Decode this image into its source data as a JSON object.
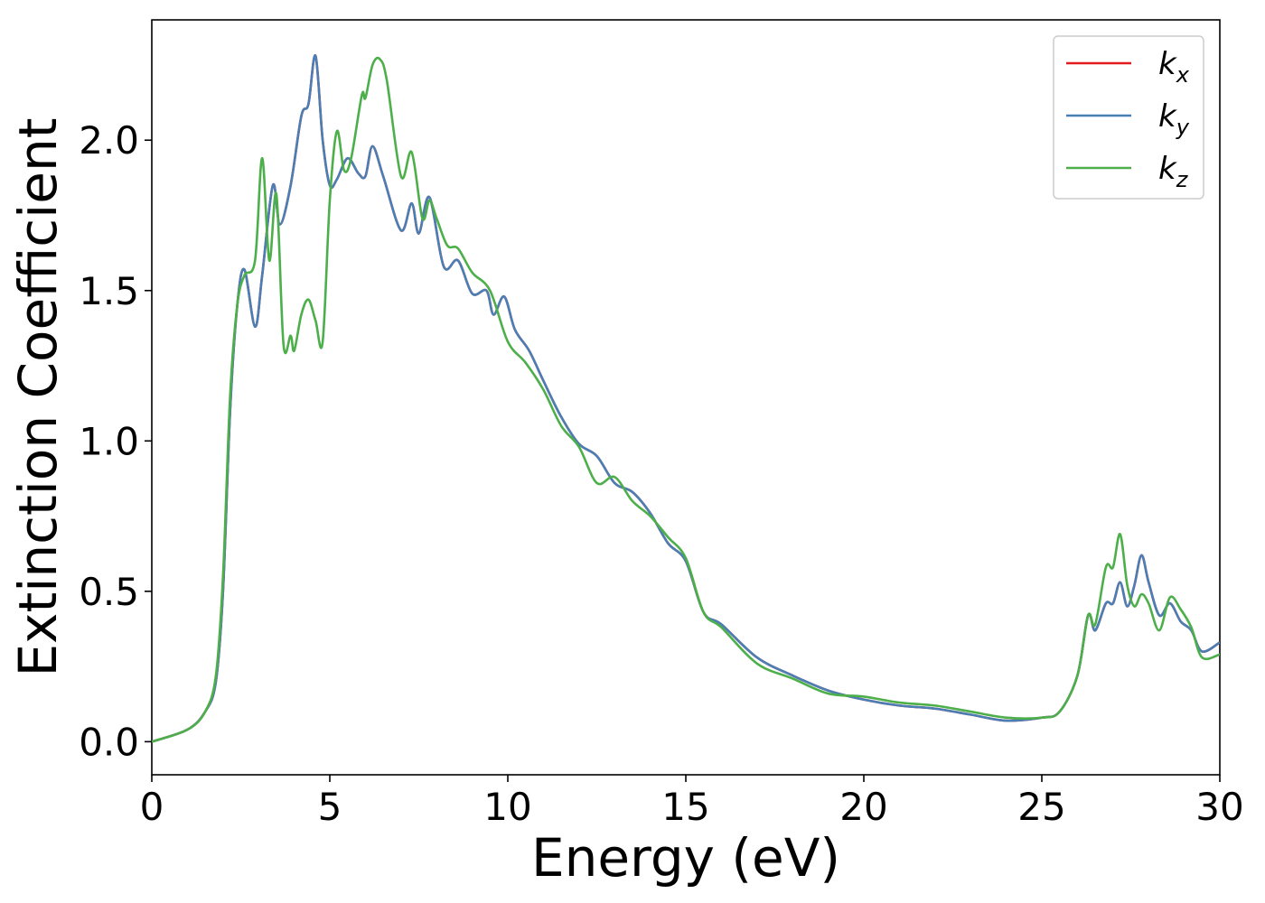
{
  "chart_data": {
    "type": "line",
    "title": "",
    "xlabel": "Energy (eV)",
    "ylabel": "Extinction Coefficient",
    "xlim": [
      0,
      30
    ],
    "ylim": [
      -0.11,
      2.4
    ],
    "xticks": [
      0,
      5,
      10,
      15,
      20,
      25,
      30
    ],
    "xtick_labels": [
      "0",
      "5",
      "10",
      "15",
      "20",
      "25",
      "30"
    ],
    "yticks": [
      0.0,
      0.5,
      1.0,
      1.5,
      2.0
    ],
    "ytick_labels": [
      "0.0",
      "0.5",
      "1.0",
      "1.5",
      "2.0"
    ],
    "grid": false,
    "legend_position": "top-right",
    "series": [
      {
        "name": "k_x",
        "legend_base": "k",
        "legend_sub": "x",
        "color": "#e41a1c",
        "x": [
          0,
          1,
          1.5,
          1.8,
          2.0,
          2.2,
          2.4,
          2.6,
          2.9,
          3.1,
          3.4,
          3.6,
          3.9,
          4.2,
          4.4,
          4.6,
          4.8,
          5.0,
          5.2,
          5.5,
          5.8,
          6.0,
          6.2,
          6.5,
          7.0,
          7.3,
          7.5,
          7.8,
          8.2,
          8.6,
          9.0,
          9.4,
          9.6,
          9.9,
          10.2,
          10.6,
          11.0,
          11.5,
          12.0,
          12.5,
          13.0,
          13.5,
          14.0,
          14.5,
          15.0,
          15.5,
          16.0,
          17.0,
          18.0,
          19.0,
          20.0,
          21.0,
          22.0,
          23.0,
          24.0,
          25.0,
          25.5,
          26.0,
          26.3,
          26.5,
          26.8,
          27.0,
          27.2,
          27.4,
          27.6,
          27.8,
          28.0,
          28.3,
          28.6,
          28.9,
          29.2,
          29.5,
          30.0
        ],
        "values": [
          0.0,
          0.04,
          0.1,
          0.2,
          0.5,
          1.1,
          1.45,
          1.57,
          1.38,
          1.55,
          1.85,
          1.72,
          1.85,
          2.08,
          2.12,
          2.28,
          2.0,
          1.85,
          1.87,
          1.94,
          1.89,
          1.88,
          1.98,
          1.88,
          1.7,
          1.79,
          1.69,
          1.81,
          1.58,
          1.6,
          1.49,
          1.5,
          1.42,
          1.48,
          1.37,
          1.3,
          1.2,
          1.08,
          0.99,
          0.95,
          0.86,
          0.83,
          0.76,
          0.66,
          0.6,
          0.43,
          0.39,
          0.28,
          0.22,
          0.17,
          0.14,
          0.12,
          0.11,
          0.09,
          0.07,
          0.08,
          0.1,
          0.22,
          0.42,
          0.37,
          0.46,
          0.46,
          0.53,
          0.45,
          0.52,
          0.62,
          0.53,
          0.42,
          0.46,
          0.4,
          0.37,
          0.3,
          0.33
        ]
      },
      {
        "name": "k_y",
        "legend_base": "k",
        "legend_sub": "y",
        "color": "#4a7fb5",
        "x": [
          0,
          1,
          1.5,
          1.8,
          2.0,
          2.2,
          2.4,
          2.6,
          2.9,
          3.1,
          3.4,
          3.6,
          3.9,
          4.2,
          4.4,
          4.6,
          4.8,
          5.0,
          5.2,
          5.5,
          5.8,
          6.0,
          6.2,
          6.5,
          7.0,
          7.3,
          7.5,
          7.8,
          8.2,
          8.6,
          9.0,
          9.4,
          9.6,
          9.9,
          10.2,
          10.6,
          11.0,
          11.5,
          12.0,
          12.5,
          13.0,
          13.5,
          14.0,
          14.5,
          15.0,
          15.5,
          16.0,
          17.0,
          18.0,
          19.0,
          20.0,
          21.0,
          22.0,
          23.0,
          24.0,
          25.0,
          25.5,
          26.0,
          26.3,
          26.5,
          26.8,
          27.0,
          27.2,
          27.4,
          27.6,
          27.8,
          28.0,
          28.3,
          28.6,
          28.9,
          29.2,
          29.5,
          30.0
        ],
        "values": [
          0.0,
          0.04,
          0.1,
          0.2,
          0.5,
          1.1,
          1.45,
          1.57,
          1.38,
          1.55,
          1.85,
          1.72,
          1.85,
          2.08,
          2.12,
          2.28,
          2.0,
          1.85,
          1.87,
          1.94,
          1.89,
          1.88,
          1.98,
          1.88,
          1.7,
          1.79,
          1.69,
          1.81,
          1.58,
          1.6,
          1.49,
          1.5,
          1.42,
          1.48,
          1.37,
          1.3,
          1.2,
          1.08,
          0.99,
          0.95,
          0.86,
          0.83,
          0.76,
          0.66,
          0.6,
          0.43,
          0.39,
          0.28,
          0.22,
          0.17,
          0.14,
          0.12,
          0.11,
          0.09,
          0.07,
          0.08,
          0.1,
          0.22,
          0.42,
          0.37,
          0.46,
          0.46,
          0.53,
          0.45,
          0.52,
          0.62,
          0.53,
          0.42,
          0.46,
          0.4,
          0.37,
          0.3,
          0.33
        ]
      },
      {
        "name": "k_z",
        "legend_base": "k",
        "legend_sub": "z",
        "color": "#4daf4a",
        "x": [
          0,
          1,
          1.5,
          1.8,
          2.0,
          2.2,
          2.4,
          2.6,
          2.9,
          3.1,
          3.3,
          3.5,
          3.7,
          3.9,
          4.0,
          4.2,
          4.4,
          4.6,
          4.8,
          5.0,
          5.2,
          5.4,
          5.6,
          5.9,
          6.0,
          6.2,
          6.4,
          6.6,
          7.0,
          7.3,
          7.6,
          7.8,
          8.0,
          8.3,
          8.6,
          9.0,
          9.5,
          10.0,
          10.5,
          11.0,
          11.5,
          12.0,
          12.5,
          13.0,
          13.5,
          14.0,
          14.5,
          15.0,
          15.5,
          16.0,
          17.0,
          18.0,
          19.0,
          20.0,
          21.0,
          22.0,
          23.0,
          24.0,
          25.0,
          25.5,
          26.0,
          26.3,
          26.5,
          26.8,
          27.0,
          27.2,
          27.4,
          27.6,
          27.8,
          28.0,
          28.3,
          28.6,
          28.9,
          29.2,
          29.5,
          30.0
        ],
        "values": [
          0.0,
          0.04,
          0.1,
          0.22,
          0.55,
          1.15,
          1.45,
          1.55,
          1.6,
          1.94,
          1.6,
          1.82,
          1.32,
          1.35,
          1.3,
          1.42,
          1.47,
          1.4,
          1.33,
          1.8,
          2.03,
          1.9,
          1.94,
          2.15,
          2.14,
          2.25,
          2.27,
          2.2,
          1.88,
          1.96,
          1.74,
          1.8,
          1.74,
          1.65,
          1.64,
          1.56,
          1.5,
          1.33,
          1.26,
          1.17,
          1.05,
          0.98,
          0.86,
          0.88,
          0.8,
          0.75,
          0.68,
          0.61,
          0.43,
          0.38,
          0.26,
          0.21,
          0.16,
          0.15,
          0.13,
          0.12,
          0.1,
          0.08,
          0.08,
          0.1,
          0.22,
          0.42,
          0.39,
          0.58,
          0.58,
          0.69,
          0.52,
          0.45,
          0.49,
          0.46,
          0.37,
          0.48,
          0.44,
          0.38,
          0.28,
          0.29
        ]
      }
    ]
  }
}
